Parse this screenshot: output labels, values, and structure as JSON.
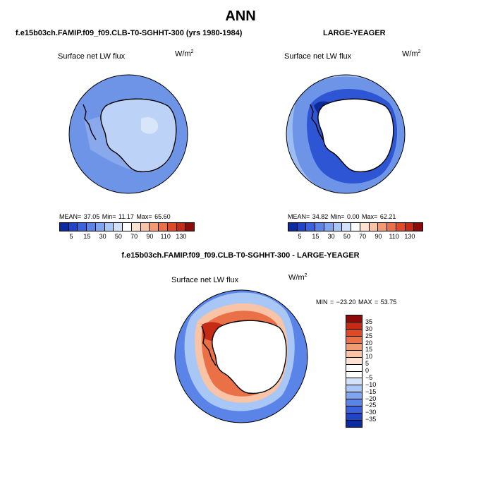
{
  "title": "ANN",
  "panels": [
    {
      "case": "f.e15b03ch.FAMIP.f09_f09.CLB-T0-SGHHT-300 (yrs 1980-1984)",
      "field": "Surface net LW flux",
      "units_base": "W/m",
      "units_exp": "2",
      "stats": "MEAN=  37.05   Min=  11.17   Max=  65.60",
      "colorbar": {
        "ticks": [
          "5",
          "15",
          "30",
          "50",
          "70",
          "90",
          "110",
          "130"
        ],
        "colors": [
          "#0a2ca0",
          "#1f44c8",
          "#3a62dc",
          "#5a84e8",
          "#7fa4f0",
          "#a8c6f6",
          "#d2e2fa",
          "#ffffff",
          "#fde2d0",
          "#f9c4a6",
          "#f29a72",
          "#ea7048",
          "#de4a28",
          "#c42a14",
          "#8e0a08"
        ]
      },
      "map_colors": {
        "ocean": "#6d94e6",
        "land": "#bcd2f6",
        "coast_band": "#8aa8ec",
        "highlight": "#d8e6fa"
      }
    },
    {
      "case": "LARGE-YEAGER",
      "field": "Surface net LW flux",
      "units_base": "W/m",
      "units_exp": "2",
      "stats": "MEAN=  34.82   Min=   0.00   Max=  62.21",
      "colorbar": {
        "ticks": [
          "5",
          "15",
          "30",
          "50",
          "70",
          "90",
          "110",
          "130"
        ],
        "colors": [
          "#0a2ca0",
          "#1f44c8",
          "#3a62dc",
          "#5a84e8",
          "#7fa4f0",
          "#a8c6f6",
          "#d2e2fa",
          "#ffffff",
          "#fde2d0",
          "#f9c4a6",
          "#f29a72",
          "#ea7048",
          "#de4a28",
          "#c42a14",
          "#8e0a08"
        ]
      },
      "map_colors": {
        "ocean": "#9cbcf2",
        "land": "#ffffff",
        "coast_band": "#2e56d4",
        "outer_band": "#6d94e6",
        "deep": "#0e2a98"
      }
    }
  ],
  "diff_panel": {
    "case": "f.e15b03ch.FAMIP.f09_f09.CLB-T0-SGHHT-300 - LARGE-YEAGER",
    "field": "Surface net LW flux",
    "units_base": "W/m",
    "units_exp": "2",
    "stats": "MIN = −23.20  MAX =  53.75",
    "colorbar": {
      "ticks": [
        "35",
        "30",
        "25",
        "20",
        "15",
        "10",
        "5",
        "0",
        "−5",
        "−10",
        "−15",
        "−20",
        "−25",
        "−30",
        "−35"
      ],
      "colors": [
        "#8e0a08",
        "#c42a14",
        "#de4a28",
        "#ea7048",
        "#f29a72",
        "#f9c4a6",
        "#fde2d0",
        "#ffffff",
        "#ffffff",
        "#d2e2fa",
        "#a8c6f6",
        "#7fa4f0",
        "#5a84e8",
        "#3a62dc",
        "#1f44c8",
        "#0a2ca0"
      ]
    },
    "map_colors": {
      "ocean": "#5a84e8",
      "land": "#ffffff",
      "coast_band": "#ea7048",
      "ring": "#f9c4a6",
      "light": "#a8c6f6",
      "hot": "#c42a14"
    }
  }
}
